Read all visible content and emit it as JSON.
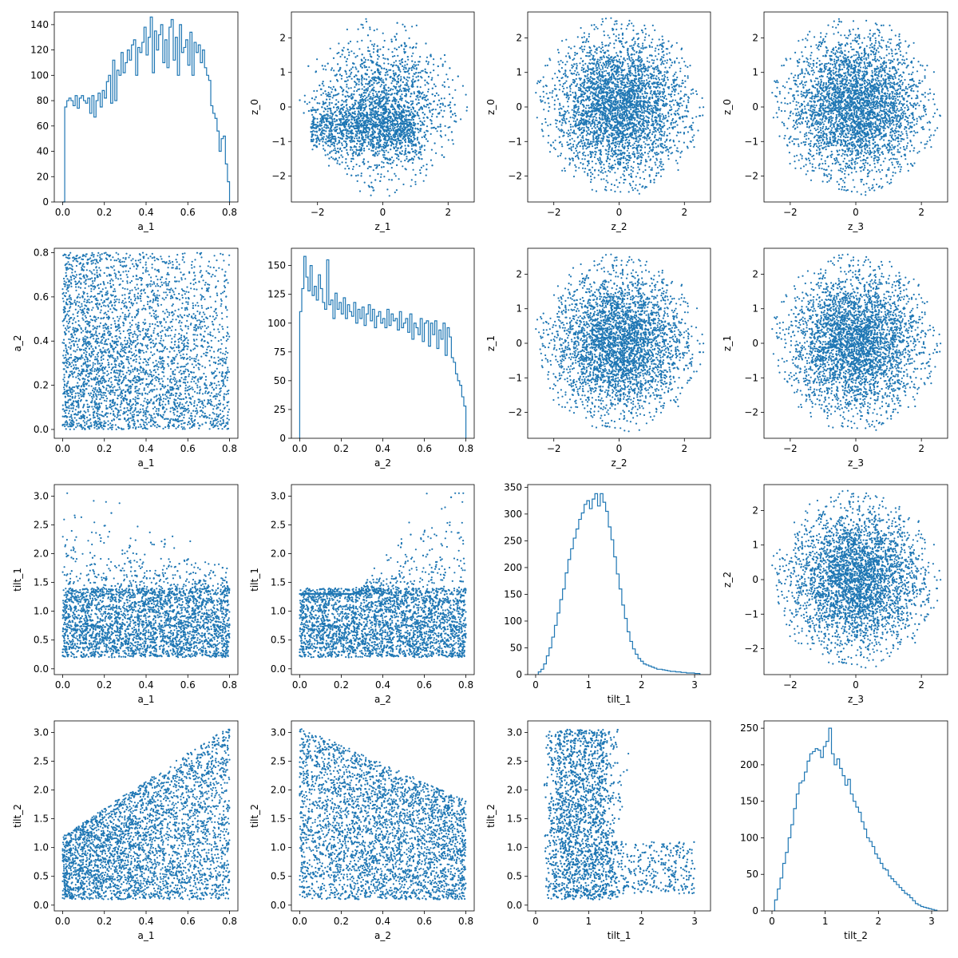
{
  "chart_data": [
    {
      "panel": "r0c0",
      "type": "histogram",
      "xlabel": "a_1",
      "ylabel": "",
      "xlim": [
        -0.04,
        0.84
      ],
      "ylim": [
        0,
        150
      ],
      "xticks": [
        0.0,
        0.2,
        0.4,
        0.6,
        0.8
      ],
      "yticks": [
        0,
        20,
        40,
        60,
        80,
        100,
        120,
        140
      ],
      "x_range": [
        0.0,
        0.8
      ],
      "counts": [
        0,
        75,
        80,
        82,
        80,
        76,
        84,
        74,
        82,
        84,
        80,
        78,
        82,
        70,
        84,
        67,
        80,
        86,
        75,
        88,
        82,
        95,
        100,
        78,
        112,
        80,
        104,
        100,
        118,
        102,
        110,
        120,
        112,
        124,
        128,
        100,
        122,
        118,
        126,
        138,
        116,
        130,
        146,
        102,
        135,
        120,
        132,
        140,
        110,
        128,
        106,
        138,
        144,
        112,
        130,
        100,
        140,
        118,
        122,
        128,
        108,
        134,
        100,
        126,
        118,
        124,
        110,
        120,
        106,
        100,
        96,
        76,
        70,
        66,
        56,
        40,
        50,
        52,
        30,
        16
      ]
    },
    {
      "panel": "r0c1",
      "type": "scatter",
      "xlabel": "z_1",
      "ylabel": "z_0",
      "xlim": [
        -2.8,
        2.8
      ],
      "ylim": [
        -2.75,
        2.75
      ],
      "xticks": [
        -2,
        0,
        2
      ],
      "yticks": [
        -2,
        -1,
        0,
        1,
        2
      ],
      "n_points": 8000,
      "distribution": "disk radius 2.6, lower-left denser band near z_0 ≈ -0.6"
    },
    {
      "panel": "r0c2",
      "type": "scatter",
      "xlabel": "z_2",
      "ylabel": "z_0",
      "xlim": [
        -2.8,
        2.8
      ],
      "ylim": [
        -2.75,
        2.75
      ],
      "xticks": [
        -2,
        0,
        2
      ],
      "yticks": [
        -2,
        -1,
        0,
        1,
        2
      ],
      "n_points": 8000,
      "distribution": "disk radius 2.6"
    },
    {
      "panel": "r0c3",
      "type": "scatter",
      "xlabel": "z_3",
      "ylabel": "z_0",
      "xlim": [
        -2.8,
        2.8
      ],
      "ylim": [
        -2.75,
        2.75
      ],
      "xticks": [
        -2,
        0,
        2
      ],
      "yticks": [
        -2,
        -1,
        0,
        1,
        2
      ],
      "n_points": 8000,
      "distribution": "disk radius 2.6"
    },
    {
      "panel": "r1c0",
      "type": "scatter",
      "xlabel": "a_1",
      "ylabel": "a_2",
      "xlim": [
        -0.04,
        0.84
      ],
      "ylim": [
        -0.04,
        0.82
      ],
      "xticks": [
        0.0,
        0.2,
        0.4,
        0.6,
        0.8
      ],
      "yticks": [
        0.0,
        0.2,
        0.4,
        0.6,
        0.8
      ],
      "n_points": 8000,
      "distribution": "uniform in [0,0.8]², density falls toward high a_1 + high a_2"
    },
    {
      "panel": "r1c1",
      "type": "histogram",
      "xlabel": "a_2",
      "ylabel": "",
      "xlim": [
        -0.04,
        0.84
      ],
      "ylim": [
        0,
        165
      ],
      "xticks": [
        0.0,
        0.2,
        0.4,
        0.6,
        0.8
      ],
      "yticks": [
        0,
        25,
        50,
        75,
        100,
        125,
        150
      ],
      "x_range": [
        0.0,
        0.8
      ],
      "counts": [
        110,
        130,
        158,
        140,
        128,
        150,
        124,
        132,
        120,
        142,
        130,
        118,
        112,
        155,
        116,
        120,
        104,
        126,
        112,
        118,
        108,
        122,
        104,
        116,
        110,
        106,
        118,
        100,
        112,
        104,
        114,
        98,
        108,
        116,
        102,
        112,
        96,
        106,
        110,
        100,
        104,
        96,
        112,
        98,
        108,
        102,
        104,
        94,
        110,
        96,
        100,
        104,
        92,
        108,
        86,
        100,
        96,
        90,
        104,
        84,
        100,
        102,
        80,
        100,
        90,
        102,
        78,
        94,
        86,
        100,
        72,
        96,
        88,
        70,
        66,
        56,
        50,
        46,
        36,
        28
      ]
    },
    {
      "panel": "r1c2",
      "type": "scatter",
      "xlabel": "z_2",
      "ylabel": "z_1",
      "xlim": [
        -2.8,
        2.8
      ],
      "ylim": [
        -2.75,
        2.75
      ],
      "xticks": [
        -2,
        0,
        2
      ],
      "yticks": [
        -2,
        -1,
        0,
        1,
        2
      ],
      "n_points": 8000,
      "distribution": "disk radius 2.6"
    },
    {
      "panel": "r1c3",
      "type": "scatter",
      "xlabel": "z_3",
      "ylabel": "z_1",
      "xlim": [
        -2.8,
        2.8
      ],
      "ylim": [
        -2.75,
        2.75
      ],
      "xticks": [
        -2,
        0,
        2
      ],
      "yticks": [
        -2,
        -1,
        0,
        1,
        2
      ],
      "n_points": 8000,
      "distribution": "disk radius 2.6"
    },
    {
      "panel": "r2c0",
      "type": "scatter",
      "xlabel": "a_1",
      "ylabel": "tilt_1",
      "xlim": [
        -0.04,
        0.84
      ],
      "ylim": [
        -0.1,
        3.2
      ],
      "xticks": [
        0.0,
        0.2,
        0.4,
        0.6,
        0.8
      ],
      "yticks": [
        0.0,
        0.5,
        1.0,
        1.5,
        2.0,
        2.5,
        3.0
      ],
      "n_points": 8000,
      "distribution": "band 0.2–1.4, tail up to 3.0 at low a_1"
    },
    {
      "panel": "r2c1",
      "type": "scatter",
      "xlabel": "a_2",
      "ylabel": "tilt_1",
      "xlim": [
        -0.04,
        0.84
      ],
      "ylim": [
        -0.1,
        3.2
      ],
      "xticks": [
        0.0,
        0.2,
        0.4,
        0.6,
        0.8
      ],
      "yticks": [
        0.0,
        0.5,
        1.0,
        1.5,
        2.0,
        2.5,
        3.0
      ],
      "n_points": 8000,
      "distribution": "band 0.2–1.4, tail up to 3.0 at high a_2"
    },
    {
      "panel": "r2c2",
      "type": "histogram",
      "xlabel": "tilt_1",
      "ylabel": "",
      "xlim": [
        -0.15,
        3.3
      ],
      "ylim": [
        0,
        355
      ],
      "xticks": [
        0,
        1,
        2,
        3
      ],
      "yticks": [
        0,
        50,
        100,
        150,
        200,
        250,
        300,
        350
      ],
      "x_range": [
        0.05,
        3.1
      ],
      "counts": [
        5,
        10,
        20,
        35,
        50,
        70,
        92,
        115,
        140,
        160,
        190,
        215,
        235,
        255,
        272,
        290,
        302,
        318,
        325,
        310,
        328,
        338,
        315,
        338,
        322,
        305,
        276,
        252,
        220,
        188,
        160,
        130,
        105,
        80,
        62,
        48,
        38,
        30,
        25,
        20,
        18,
        16,
        14,
        12,
        10,
        10,
        9,
        8,
        7,
        6,
        6,
        5,
        5,
        4,
        4,
        3,
        3,
        3,
        2,
        2
      ]
    },
    {
      "panel": "r2c3",
      "type": "scatter",
      "xlabel": "z_3",
      "ylabel": "z_2",
      "xlim": [
        -2.8,
        2.8
      ],
      "ylim": [
        -2.75,
        2.75
      ],
      "xticks": [
        -2,
        0,
        2
      ],
      "yticks": [
        -2,
        -1,
        0,
        1,
        2
      ],
      "n_points": 8000,
      "distribution": "disk radius 2.6"
    },
    {
      "panel": "r3c0",
      "type": "scatter",
      "xlabel": "a_1",
      "ylabel": "tilt_2",
      "xlim": [
        -0.04,
        0.84
      ],
      "ylim": [
        -0.1,
        3.2
      ],
      "xticks": [
        0.0,
        0.2,
        0.4,
        0.6,
        0.8
      ],
      "yticks": [
        0.0,
        0.5,
        1.0,
        1.5,
        2.0,
        2.5,
        3.0
      ],
      "n_points": 8000,
      "distribution": "rises with a_1: 0.1–1.2 at low a_1, up to 3.0 at high a_1"
    },
    {
      "panel": "r3c1",
      "type": "scatter",
      "xlabel": "a_2",
      "ylabel": "tilt_2",
      "xlim": [
        -0.04,
        0.84
      ],
      "ylim": [
        -0.1,
        3.2
      ],
      "xticks": [
        0.0,
        0.2,
        0.4,
        0.6,
        0.8
      ],
      "yticks": [
        0.0,
        0.5,
        1.0,
        1.5,
        2.0,
        2.5,
        3.0
      ],
      "n_points": 8000,
      "distribution": "falls with a_2: up to 3.0 at low a_2, 0.1–1.8 at high a_2"
    },
    {
      "panel": "r3c2",
      "type": "scatter",
      "xlabel": "tilt_1",
      "ylabel": "tilt_2",
      "xlim": [
        -0.15,
        3.3
      ],
      "ylim": [
        -0.1,
        3.2
      ],
      "xticks": [
        0,
        1,
        2,
        3
      ],
      "yticks": [
        0.0,
        0.5,
        1.0,
        1.5,
        2.0,
        2.5,
        3.0
      ],
      "n_points": 8000,
      "distribution": "dense block tilt_1 0.2–1.4, sparse tail to 3.0"
    },
    {
      "panel": "r3c3",
      "type": "histogram",
      "xlabel": "tilt_2",
      "ylabel": "",
      "xlim": [
        -0.15,
        3.3
      ],
      "ylim": [
        0,
        260
      ],
      "xticks": [
        0,
        1,
        2,
        3
      ],
      "yticks": [
        0,
        50,
        100,
        150,
        200,
        250
      ],
      "x_range": [
        0.05,
        3.1
      ],
      "counts": [
        15,
        30,
        45,
        65,
        80,
        100,
        118,
        140,
        160,
        175,
        178,
        190,
        205,
        215,
        218,
        222,
        220,
        210,
        225,
        232,
        250,
        215,
        200,
        208,
        195,
        185,
        172,
        180,
        160,
        150,
        142,
        135,
        122,
        112,
        100,
        95,
        88,
        78,
        72,
        65,
        58,
        56,
        48,
        44,
        40,
        36,
        32,
        28,
        24,
        22,
        18,
        14,
        10,
        8,
        6,
        5,
        4,
        3,
        2,
        1
      ]
    }
  ],
  "colors": {
    "accent": "#1f77b4",
    "axes": "#000000",
    "background": "#ffffff"
  }
}
